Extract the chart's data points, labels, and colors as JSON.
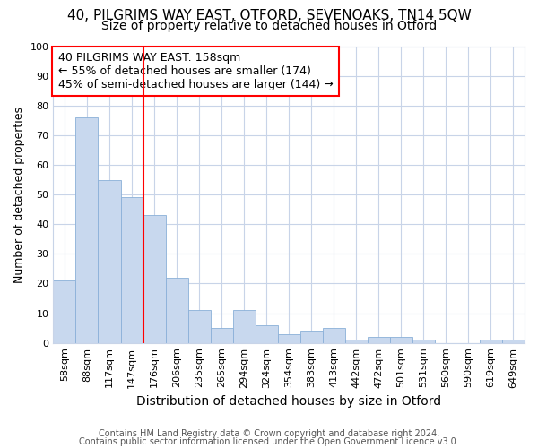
{
  "title1": "40, PILGRIMS WAY EAST, OTFORD, SEVENOAKS, TN14 5QW",
  "title2": "Size of property relative to detached houses in Otford",
  "xlabel": "Distribution of detached houses by size in Otford",
  "ylabel": "Number of detached properties",
  "categories": [
    "58sqm",
    "88sqm",
    "117sqm",
    "147sqm",
    "176sqm",
    "206sqm",
    "235sqm",
    "265sqm",
    "294sqm",
    "324sqm",
    "354sqm",
    "383sqm",
    "413sqm",
    "442sqm",
    "472sqm",
    "501sqm",
    "531sqm",
    "560sqm",
    "590sqm",
    "619sqm",
    "649sqm"
  ],
  "values": [
    21,
    76,
    55,
    49,
    43,
    22,
    11,
    5,
    11,
    6,
    3,
    4,
    5,
    1,
    2,
    2,
    1,
    0,
    0,
    1,
    1
  ],
  "bar_color": "#c8d8ee",
  "bar_edge_color": "#8ab0d8",
  "annotation_text": "40 PILGRIMS WAY EAST: 158sqm\n← 55% of detached houses are smaller (174)\n45% of semi-detached houses are larger (144) →",
  "footer1": "Contains HM Land Registry data © Crown copyright and database right 2024.",
  "footer2": "Contains public sector information licensed under the Open Government Licence v3.0.",
  "ylim": [
    0,
    100
  ],
  "red_line_index": 3.5,
  "background_color": "#ffffff",
  "grid_color": "#c8d4e8",
  "title1_fontsize": 11,
  "title2_fontsize": 10,
  "xlabel_fontsize": 10,
  "ylabel_fontsize": 9,
  "tick_fontsize": 8,
  "ann_fontsize": 9,
  "footer_fontsize": 7
}
